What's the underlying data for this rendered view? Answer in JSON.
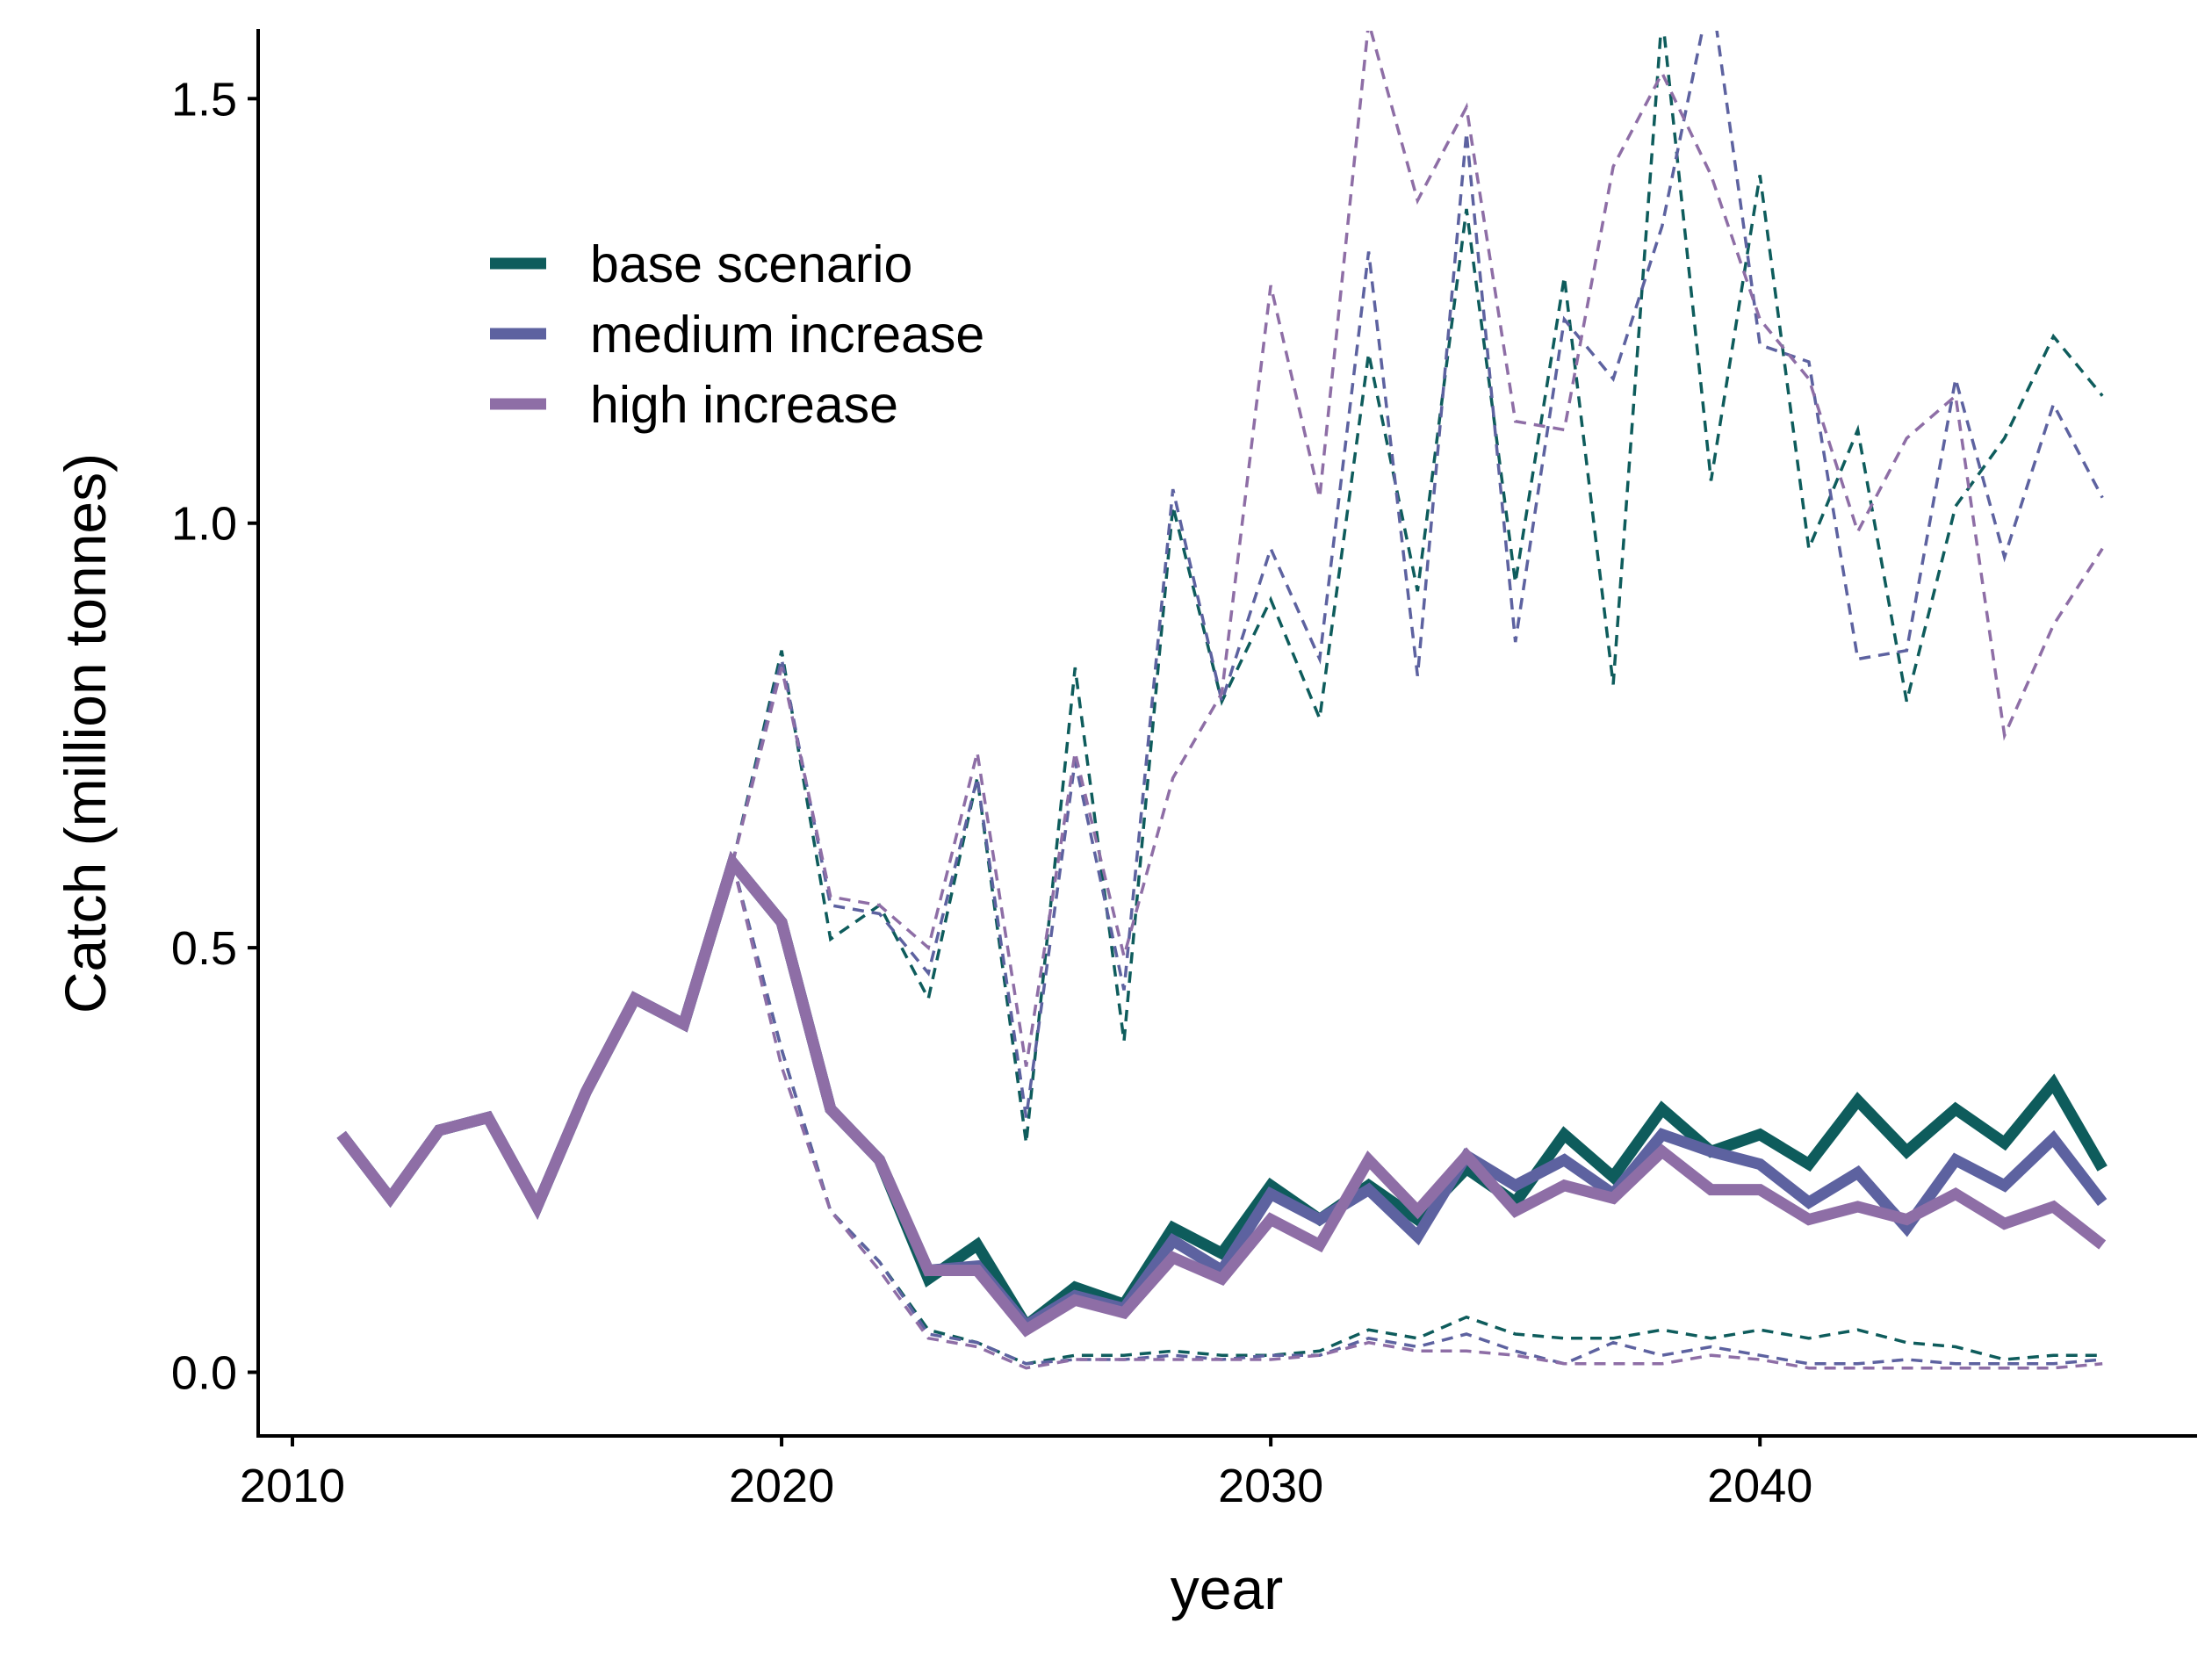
{
  "chart_data": {
    "type": "line",
    "xlabel": "year",
    "ylabel": "Catch (million tonnes)",
    "xlim": [
      2009.3,
      2048.9
    ],
    "ylim": [
      -0.075,
      1.58
    ],
    "xticks": [
      2010,
      2020,
      2030,
      2040
    ],
    "xtick_labels": [
      "2010",
      "2020",
      "2030",
      "2040"
    ],
    "yticks": [
      0,
      0.5,
      1,
      1.5
    ],
    "ytick_labels": [
      "0.0",
      "0.5",
      "1.0",
      "1.5"
    ],
    "grid": false,
    "legend_position": "top-left",
    "series": [
      {
        "name": "base scenario",
        "color": "#0e5c5c",
        "x": [
          2011,
          2012,
          2013,
          2014,
          2015,
          2016,
          2017,
          2018,
          2019,
          2020,
          2021,
          2022,
          2023,
          2024,
          2025,
          2026,
          2027,
          2028,
          2029,
          2030,
          2031,
          2032,
          2033,
          2034,
          2035,
          2036,
          2037,
          2038,
          2039,
          2040,
          2041,
          2042,
          2043,
          2044,
          2045,
          2046,
          2047
        ],
        "values": [
          0.28,
          0.205,
          0.285,
          0.3,
          0.195,
          0.33,
          0.44,
          0.41,
          0.6,
          0.53,
          0.31,
          0.25,
          0.11,
          0.15,
          0.055,
          0.1,
          0.08,
          0.17,
          0.14,
          0.22,
          0.18,
          0.22,
          0.18,
          0.24,
          0.2,
          0.28,
          0.23,
          0.31,
          0.26,
          0.28,
          0.245,
          0.32,
          0.26,
          0.31,
          0.27,
          0.34,
          0.24
        ],
        "lower": [
          null,
          null,
          null,
          null,
          null,
          null,
          null,
          null,
          0.6,
          0.38,
          0.19,
          0.13,
          0.05,
          0.035,
          0.01,
          0.02,
          0.02,
          0.025,
          0.02,
          0.02,
          0.025,
          0.05,
          0.04,
          0.065,
          0.045,
          0.04,
          0.04,
          0.05,
          0.04,
          0.05,
          0.04,
          0.05,
          0.035,
          0.03,
          0.015,
          0.02,
          0.02
        ],
        "upper": [
          null,
          null,
          null,
          null,
          null,
          null,
          null,
          null,
          0.6,
          0.85,
          0.51,
          0.55,
          0.44,
          0.7,
          0.27,
          0.83,
          0.39,
          1.02,
          0.79,
          0.91,
          0.77,
          1.2,
          0.92,
          1.37,
          0.93,
          1.29,
          0.81,
          1.6,
          1.05,
          1.41,
          0.97,
          1.11,
          0.79,
          1.02,
          1.1,
          1.22,
          1.15
        ]
      },
      {
        "name": "medium increase",
        "color": "#5d62a0",
        "x": [
          2011,
          2012,
          2013,
          2014,
          2015,
          2016,
          2017,
          2018,
          2019,
          2020,
          2021,
          2022,
          2023,
          2024,
          2025,
          2026,
          2027,
          2028,
          2029,
          2030,
          2031,
          2032,
          2033,
          2034,
          2035,
          2036,
          2037,
          2038,
          2039,
          2040,
          2041,
          2042,
          2043,
          2044,
          2045,
          2046,
          2047
        ],
        "values": [
          0.28,
          0.205,
          0.285,
          0.3,
          0.195,
          0.33,
          0.44,
          0.41,
          0.6,
          0.53,
          0.31,
          0.25,
          0.12,
          0.125,
          0.055,
          0.09,
          0.075,
          0.155,
          0.12,
          0.21,
          0.18,
          0.215,
          0.16,
          0.255,
          0.22,
          0.25,
          0.21,
          0.28,
          0.26,
          0.245,
          0.2,
          0.235,
          0.17,
          0.25,
          0.22,
          0.275,
          0.2
        ],
        "lower": [
          null,
          null,
          null,
          null,
          null,
          null,
          null,
          null,
          0.6,
          0.38,
          0.19,
          0.13,
          0.045,
          0.035,
          0.01,
          0.015,
          0.015,
          0.02,
          0.015,
          0.02,
          0.02,
          0.04,
          0.03,
          0.045,
          0.025,
          0.01,
          0.035,
          0.02,
          0.03,
          0.02,
          0.01,
          0.01,
          0.015,
          0.01,
          0.01,
          0.01,
          0.015
        ],
        "upper": [
          null,
          null,
          null,
          null,
          null,
          null,
          null,
          null,
          0.6,
          0.84,
          0.55,
          0.54,
          0.47,
          0.7,
          0.3,
          0.72,
          0.45,
          1.04,
          0.79,
          0.97,
          0.84,
          1.32,
          0.82,
          1.46,
          0.86,
          1.24,
          1.17,
          1.35,
          1.63,
          1.21,
          1.19,
          0.84,
          0.85,
          1.17,
          0.96,
          1.14,
          1.03
        ]
      },
      {
        "name": "high increase",
        "color": "#8e6ea6",
        "x": [
          2011,
          2012,
          2013,
          2014,
          2015,
          2016,
          2017,
          2018,
          2019,
          2020,
          2021,
          2022,
          2023,
          2024,
          2025,
          2026,
          2027,
          2028,
          2029,
          2030,
          2031,
          2032,
          2033,
          2034,
          2035,
          2036,
          2037,
          2038,
          2039,
          2040,
          2041,
          2042,
          2043,
          2044,
          2045,
          2046,
          2047
        ],
        "values": [
          0.28,
          0.205,
          0.285,
          0.3,
          0.195,
          0.33,
          0.44,
          0.41,
          0.6,
          0.53,
          0.31,
          0.25,
          0.12,
          0.12,
          0.05,
          0.085,
          0.07,
          0.135,
          0.11,
          0.18,
          0.15,
          0.25,
          0.19,
          0.255,
          0.19,
          0.22,
          0.205,
          0.26,
          0.215,
          0.215,
          0.18,
          0.195,
          0.18,
          0.21,
          0.175,
          0.195,
          0.15
        ],
        "lower": [
          null,
          null,
          null,
          null,
          null,
          null,
          null,
          null,
          0.6,
          0.36,
          0.19,
          0.12,
          0.04,
          0.03,
          0.005,
          0.015,
          0.015,
          0.015,
          0.015,
          0.015,
          0.02,
          0.035,
          0.025,
          0.025,
          0.02,
          0.01,
          0.01,
          0.01,
          0.02,
          0.015,
          0.005,
          0.005,
          0.005,
          0.005,
          0.005,
          0.005,
          0.01
        ],
        "upper": [
          null,
          null,
          null,
          null,
          null,
          null,
          null,
          null,
          0.6,
          0.83,
          0.56,
          0.55,
          0.5,
          0.73,
          0.36,
          0.73,
          0.49,
          0.7,
          0.8,
          1.28,
          1.03,
          1.59,
          1.38,
          1.49,
          1.12,
          1.11,
          1.42,
          1.53,
          1.41,
          1.24,
          1.17,
          0.99,
          1.1,
          1.15,
          0.75,
          0.88,
          0.97
        ]
      }
    ]
  }
}
